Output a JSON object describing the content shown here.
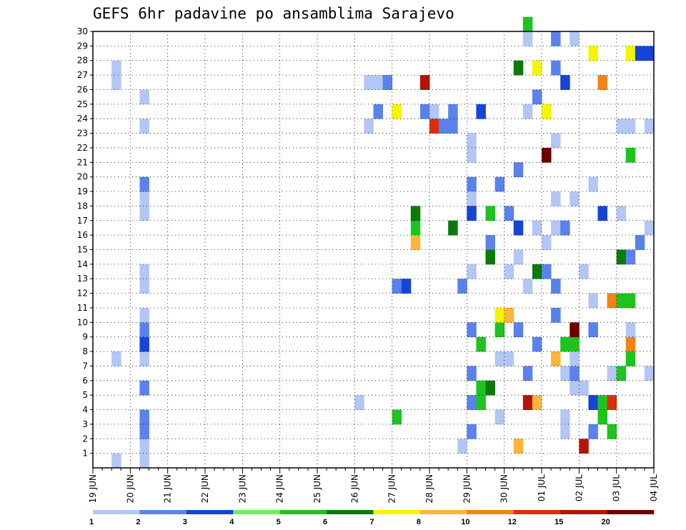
{
  "chart_data": {
    "type": "heatmap",
    "title": "GEFS 6hr padavine po ansamblima Sarajevo",
    "xlabel": "",
    "ylabel": "",
    "x_tick_labels": [
      "19 JUN",
      "20 JUN",
      "21 JUN",
      "22 JUN",
      "23 JUN",
      "24 JUN",
      "25 JUN",
      "26 JUN",
      "27 JUN",
      "28 JUN",
      "29 JUN",
      "30 JUN",
      "01 JUL",
      "02 JUL",
      "03 JUL",
      "04 JUL"
    ],
    "ylim": [
      0,
      30
    ],
    "y_ticks": [
      1,
      2,
      3,
      4,
      5,
      6,
      7,
      8,
      9,
      10,
      11,
      12,
      13,
      14,
      15,
      16,
      17,
      18,
      19,
      20,
      21,
      22,
      23,
      24,
      25,
      26,
      27,
      28,
      29,
      30
    ],
    "xlim": [
      0,
      60
    ],
    "x_unit": "6-hour steps from 19 JUN 00Z",
    "grid": true,
    "colorbar": {
      "levels": [
        "1",
        "2",
        "3",
        "4",
        "5",
        "6",
        "7",
        "8",
        "10",
        "12",
        "15",
        "20"
      ],
      "colors": [
        "#b3c6f5",
        "#5b82ec",
        "#1545d8",
        "#6ef25b",
        "#1ec31e",
        "#0b7a0b",
        "#f5f500",
        "#fbb43c",
        "#f58214",
        "#dc2e0a",
        "#b4140a",
        "#6e0000"
      ]
    },
    "cells": [
      {
        "s": 2,
        "m": 0,
        "c": 0
      },
      {
        "s": 2,
        "m": 7,
        "c": 0
      },
      {
        "s": 2,
        "m": 26,
        "c": 0
      },
      {
        "s": 2,
        "m": 27,
        "c": 0
      },
      {
        "s": 5,
        "m": 0,
        "c": 0
      },
      {
        "s": 5,
        "m": 1,
        "c": 0
      },
      {
        "s": 5,
        "m": 2,
        "c": 1
      },
      {
        "s": 5,
        "m": 3,
        "c": 1
      },
      {
        "s": 5,
        "m": 5,
        "c": 1
      },
      {
        "s": 5,
        "m": 7,
        "c": 0
      },
      {
        "s": 5,
        "m": 8,
        "c": 2
      },
      {
        "s": 5,
        "m": 9,
        "c": 1
      },
      {
        "s": 5,
        "m": 10,
        "c": 0
      },
      {
        "s": 5,
        "m": 12,
        "c": 0
      },
      {
        "s": 5,
        "m": 13,
        "c": 0
      },
      {
        "s": 5,
        "m": 17,
        "c": 0
      },
      {
        "s": 5,
        "m": 18,
        "c": 0
      },
      {
        "s": 5,
        "m": 19,
        "c": 1
      },
      {
        "s": 5,
        "m": 23,
        "c": 0
      },
      {
        "s": 5,
        "m": 25,
        "c": 0
      },
      {
        "s": 28,
        "m": 4,
        "c": 0
      },
      {
        "s": 29,
        "m": 23,
        "c": 0
      },
      {
        "s": 29,
        "m": 26,
        "c": 0
      },
      {
        "s": 30,
        "m": 24,
        "c": 1
      },
      {
        "s": 30,
        "m": 26,
        "c": 0
      },
      {
        "s": 31,
        "m": 26,
        "c": 1
      },
      {
        "s": 32,
        "m": 24,
        "c": 6
      },
      {
        "s": 32,
        "m": 12,
        "c": 1
      },
      {
        "s": 32,
        "m": 3,
        "c": 4
      },
      {
        "s": 33,
        "m": 12,
        "c": 2
      },
      {
        "s": 34,
        "m": 16,
        "c": 4
      },
      {
        "s": 34,
        "m": 17,
        "c": 5
      },
      {
        "s": 34,
        "m": 15,
        "c": 7
      },
      {
        "s": 35,
        "m": 26,
        "c": 10
      },
      {
        "s": 35,
        "m": 24,
        "c": 1
      },
      {
        "s": 36,
        "m": 24,
        "c": 0
      },
      {
        "s": 36,
        "m": 23,
        "c": 9
      },
      {
        "s": 37,
        "m": 23,
        "c": 1
      },
      {
        "s": 38,
        "m": 16,
        "c": 5
      },
      {
        "s": 38,
        "m": 24,
        "c": 1
      },
      {
        "s": 38,
        "m": 23,
        "c": 1
      },
      {
        "s": 39,
        "m": 12,
        "c": 1
      },
      {
        "s": 39,
        "m": 1,
        "c": 0
      },
      {
        "s": 40,
        "m": 19,
        "c": 1
      },
      {
        "s": 40,
        "m": 22,
        "c": 0
      },
      {
        "s": 40,
        "m": 21,
        "c": 0
      },
      {
        "s": 40,
        "m": 18,
        "c": 0
      },
      {
        "s": 40,
        "m": 9,
        "c": 1
      },
      {
        "s": 40,
        "m": 13,
        "c": 0
      },
      {
        "s": 40,
        "m": 6,
        "c": 1
      },
      {
        "s": 40,
        "m": 2,
        "c": 1
      },
      {
        "s": 40,
        "m": 17,
        "c": 2
      },
      {
        "s": 40,
        "m": 4,
        "c": 1
      },
      {
        "s": 41,
        "m": 4,
        "c": 4
      },
      {
        "s": 41,
        "m": 5,
        "c": 4
      },
      {
        "s": 41,
        "m": 8,
        "c": 4
      },
      {
        "s": 41,
        "m": 24,
        "c": 2
      },
      {
        "s": 42,
        "m": 5,
        "c": 5
      },
      {
        "s": 42,
        "m": 14,
        "c": 5
      },
      {
        "s": 42,
        "m": 17,
        "c": 4
      },
      {
        "s": 42,
        "m": 15,
        "c": 1
      },
      {
        "s": 43,
        "m": 7,
        "c": 0
      },
      {
        "s": 43,
        "m": 9,
        "c": 4
      },
      {
        "s": 43,
        "m": 19,
        "c": 1
      },
      {
        "s": 43,
        "m": 10,
        "c": 6
      },
      {
        "s": 43,
        "m": 3,
        "c": 0
      },
      {
        "s": 44,
        "m": 10,
        "c": 7
      },
      {
        "s": 44,
        "m": 7,
        "c": 0
      },
      {
        "s": 44,
        "m": 13,
        "c": 0
      },
      {
        "s": 44,
        "m": 17,
        "c": 1
      },
      {
        "s": 45,
        "m": 9,
        "c": 1
      },
      {
        "s": 45,
        "m": 14,
        "c": 0
      },
      {
        "s": 45,
        "m": 20,
        "c": 1
      },
      {
        "s": 45,
        "m": 27,
        "c": 5
      },
      {
        "s": 45,
        "m": 16,
        "c": 2
      },
      {
        "s": 45,
        "m": 1,
        "c": 7
      },
      {
        "s": 46,
        "m": 4,
        "c": 10
      },
      {
        "s": 46,
        "m": 12,
        "c": 0
      },
      {
        "s": 46,
        "m": 24,
        "c": 0
      },
      {
        "s": 46,
        "m": 29,
        "c": 0
      },
      {
        "s": 46,
        "m": 30,
        "c": 4
      },
      {
        "s": 46,
        "m": 6,
        "c": 1
      },
      {
        "s": 47,
        "m": 16,
        "c": 0
      },
      {
        "s": 47,
        "m": 8,
        "c": 1
      },
      {
        "s": 47,
        "m": 27,
        "c": 6
      },
      {
        "s": 47,
        "m": 4,
        "c": 7
      },
      {
        "s": 47,
        "m": 25,
        "c": 1
      },
      {
        "s": 47,
        "m": 13,
        "c": 5
      },
      {
        "s": 48,
        "m": 21,
        "c": 11
      },
      {
        "s": 48,
        "m": 24,
        "c": 6
      },
      {
        "s": 48,
        "m": 13,
        "c": 1
      },
      {
        "s": 48,
        "m": 15,
        "c": 0
      },
      {
        "s": 49,
        "m": 16,
        "c": 0
      },
      {
        "s": 49,
        "m": 10,
        "c": 1
      },
      {
        "s": 49,
        "m": 12,
        "c": 1
      },
      {
        "s": 49,
        "m": 7,
        "c": 7
      },
      {
        "s": 49,
        "m": 27,
        "c": 1
      },
      {
        "s": 49,
        "m": 29,
        "c": 1
      },
      {
        "s": 49,
        "m": 18,
        "c": 0
      },
      {
        "s": 49,
        "m": 22,
        "c": 0
      },
      {
        "s": 50,
        "m": 2,
        "c": 0
      },
      {
        "s": 50,
        "m": 16,
        "c": 1
      },
      {
        "s": 50,
        "m": 3,
        "c": 0
      },
      {
        "s": 50,
        "m": 8,
        "c": 4
      },
      {
        "s": 50,
        "m": 26,
        "c": 2
      },
      {
        "s": 50,
        "m": 6,
        "c": 0
      },
      {
        "s": 51,
        "m": 5,
        "c": 0
      },
      {
        "s": 51,
        "m": 29,
        "c": 0
      },
      {
        "s": 51,
        "m": 8,
        "c": 4
      },
      {
        "s": 51,
        "m": 9,
        "c": 11
      },
      {
        "s": 51,
        "m": 6,
        "c": 1
      },
      {
        "s": 51,
        "m": 18,
        "c": 0
      },
      {
        "s": 51,
        "m": 7,
        "c": 0
      },
      {
        "s": 52,
        "m": 1,
        "c": 10
      },
      {
        "s": 52,
        "m": 5,
        "c": 0
      },
      {
        "s": 52,
        "m": 13,
        "c": 0
      },
      {
        "s": 53,
        "m": 28,
        "c": 6
      },
      {
        "s": 53,
        "m": 19,
        "c": 0
      },
      {
        "s": 53,
        "m": 4,
        "c": 2
      },
      {
        "s": 53,
        "m": 2,
        "c": 1
      },
      {
        "s": 53,
        "m": 9,
        "c": 1
      },
      {
        "s": 53,
        "m": 11,
        "c": 0
      },
      {
        "s": 54,
        "m": 4,
        "c": 4
      },
      {
        "s": 54,
        "m": 17,
        "c": 2
      },
      {
        "s": 54,
        "m": 26,
        "c": 8
      },
      {
        "s": 54,
        "m": 3,
        "c": 4
      },
      {
        "s": 55,
        "m": 11,
        "c": 8
      },
      {
        "s": 55,
        "m": 6,
        "c": 0
      },
      {
        "s": 55,
        "m": 4,
        "c": 9
      },
      {
        "s": 55,
        "m": 2,
        "c": 4
      },
      {
        "s": 56,
        "m": 11,
        "c": 4
      },
      {
        "s": 56,
        "m": 6,
        "c": 4
      },
      {
        "s": 56,
        "m": 17,
        "c": 0
      },
      {
        "s": 56,
        "m": 14,
        "c": 5
      },
      {
        "s": 56,
        "m": 23,
        "c": 0
      },
      {
        "s": 57,
        "m": 7,
        "c": 4
      },
      {
        "s": 57,
        "m": 8,
        "c": 8
      },
      {
        "s": 57,
        "m": 9,
        "c": 0
      },
      {
        "s": 57,
        "m": 11,
        "c": 4
      },
      {
        "s": 57,
        "m": 28,
        "c": 6
      },
      {
        "s": 57,
        "m": 14,
        "c": 1
      },
      {
        "s": 57,
        "m": 23,
        "c": 0
      },
      {
        "s": 57,
        "m": 21,
        "c": 4
      },
      {
        "s": 58,
        "m": 15,
        "c": 1
      },
      {
        "s": 58,
        "m": 28,
        "c": 2
      },
      {
        "s": 59,
        "m": 6,
        "c": 0
      },
      {
        "s": 59,
        "m": 16,
        "c": 0
      },
      {
        "s": 59,
        "m": 23,
        "c": 0
      },
      {
        "s": 59,
        "m": 28,
        "c": 2
      }
    ]
  }
}
